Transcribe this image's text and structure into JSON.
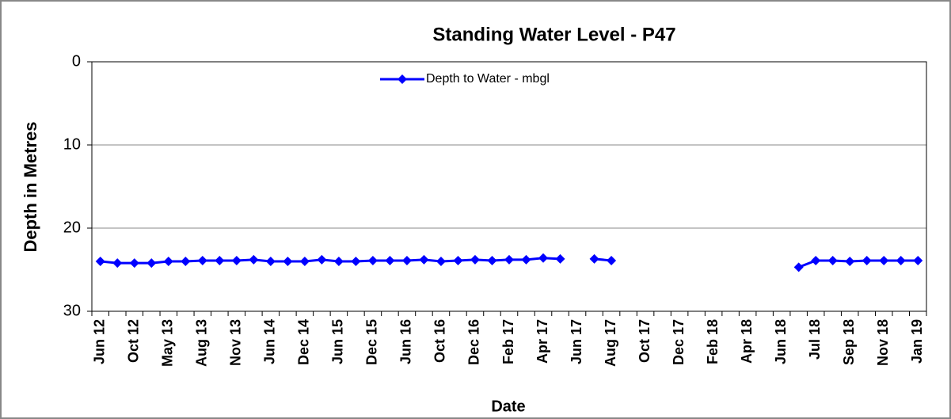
{
  "chart_data": {
    "type": "line",
    "title": "Standing Water Level - P47",
    "x_label": "Date",
    "y_label": "Depth in Metres",
    "categories": [
      "Jun 12",
      null,
      "Oct 12",
      null,
      "May 13",
      null,
      "Aug 13",
      null,
      "Nov 13",
      null,
      "Jun 14",
      null,
      "Dec 14",
      null,
      "Jun 15",
      null,
      "Dec 15",
      null,
      "Jun 16",
      null,
      "Oct 16",
      null,
      "Dec 16",
      null,
      "Feb 17",
      null,
      "Apr 17",
      null,
      "Jun 17",
      null,
      "Aug 17",
      null,
      "Oct 17",
      null,
      "Dec 17",
      null,
      "Feb 18",
      null,
      "Apr 18",
      null,
      "Jun 18",
      null,
      "Jul 18",
      null,
      "Sep 18",
      null,
      "Nov 18",
      null,
      "Jan 19"
    ],
    "series": [
      {
        "name": "Depth to Water - mbgl",
        "color": "#0000ff",
        "values": [
          24.0,
          24.2,
          24.2,
          24.2,
          24.0,
          24.0,
          23.9,
          23.9,
          23.9,
          23.8,
          24.0,
          24.0,
          24.0,
          23.8,
          24.0,
          24.0,
          23.9,
          23.9,
          23.9,
          23.8,
          24.0,
          23.9,
          23.8,
          23.9,
          23.8,
          23.8,
          23.6,
          23.7,
          null,
          23.7,
          23.9,
          null,
          null,
          null,
          null,
          null,
          null,
          null,
          null,
          null,
          null,
          24.7,
          23.9,
          23.9,
          24.0,
          23.9,
          23.9,
          23.9,
          23.9
        ]
      }
    ],
    "ylim": [
      0,
      30
    ],
    "yticks": [
      0,
      10,
      20,
      30
    ],
    "y_inverted": true,
    "grid": true,
    "legend": "top"
  }
}
